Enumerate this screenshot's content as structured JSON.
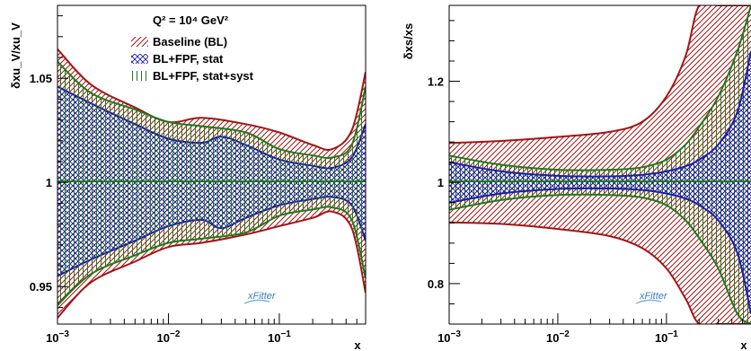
{
  "chart_data": [
    {
      "type": "area",
      "panel": "left",
      "ylabel": "δxu_V/xu_V",
      "xlabel": "x",
      "xscale": "log",
      "xlim": [
        0.001,
        0.6
      ],
      "ylim": [
        0.932,
        1.085
      ],
      "yticks": [
        0.95,
        1.0,
        1.05
      ],
      "ytick_labels": [
        "0.95",
        "1",
        "1.05"
      ],
      "xticks": [
        0.001,
        0.01,
        0.1
      ],
      "legend_title": "Q² = 10⁴ GeV²",
      "legend_placement": "top-center",
      "series": [
        {
          "name": "Baseline (BL)",
          "color": "#a31515",
          "hatch": "diagonal",
          "x": [
            0.001,
            0.002,
            0.005,
            0.01,
            0.02,
            0.05,
            0.1,
            0.2,
            0.3,
            0.45,
            0.6
          ],
          "upper": [
            1.064,
            1.047,
            1.036,
            1.029,
            1.031,
            1.028,
            1.024,
            1.018,
            1.016,
            1.025,
            1.053
          ],
          "lower": [
            0.935,
            0.952,
            0.962,
            0.969,
            0.971,
            0.975,
            0.979,
            0.983,
            0.986,
            0.978,
            0.947
          ]
        },
        {
          "name": "BL+FPF, stat",
          "color": "#1e1ea8",
          "hatch": "crossed",
          "x": [
            0.001,
            0.002,
            0.005,
            0.01,
            0.02,
            0.03,
            0.05,
            0.1,
            0.2,
            0.3,
            0.45,
            0.6
          ],
          "upper": [
            1.046,
            1.038,
            1.028,
            1.021,
            1.019,
            1.022,
            1.018,
            1.011,
            1.008,
            1.007,
            1.012,
            1.028
          ],
          "lower": [
            0.955,
            0.963,
            0.972,
            0.979,
            0.982,
            0.978,
            0.983,
            0.989,
            0.992,
            0.993,
            0.989,
            0.972
          ]
        },
        {
          "name": "BL+FPF, stat+syst",
          "color": "#1f7a1f",
          "hatch": "vertical",
          "x": [
            0.001,
            0.002,
            0.005,
            0.01,
            0.02,
            0.05,
            0.1,
            0.2,
            0.3,
            0.45,
            0.6
          ],
          "upper": [
            1.058,
            1.043,
            1.035,
            1.029,
            1.027,
            1.024,
            1.016,
            1.013,
            1.012,
            1.018,
            1.046
          ],
          "lower": [
            0.941,
            0.956,
            0.965,
            0.971,
            0.973,
            0.976,
            0.984,
            0.987,
            0.988,
            0.982,
            0.954
          ]
        }
      ]
    },
    {
      "type": "area",
      "panel": "right",
      "ylabel": "δxs/xs",
      "xlabel": "x",
      "xscale": "log",
      "xlim": [
        0.001,
        0.6
      ],
      "ylim": [
        0.72,
        1.35
      ],
      "yticks": [
        0.8,
        1.0,
        1.2
      ],
      "ytick_labels": [
        "0.8",
        "1",
        "1.2"
      ],
      "xticks": [
        0.001,
        0.01,
        0.1
      ],
      "series": [
        {
          "name": "Baseline (BL)",
          "color": "#a31515",
          "hatch": "diagonal",
          "x": [
            0.001,
            0.003,
            0.01,
            0.03,
            0.06,
            0.1,
            0.15,
            0.2,
            0.3,
            0.5,
            0.6
          ],
          "upper": [
            1.078,
            1.082,
            1.09,
            1.1,
            1.12,
            1.17,
            1.25,
            1.35,
            1.35,
            1.35,
            1.35
          ],
          "lower": [
            0.921,
            0.918,
            0.908,
            0.894,
            0.87,
            0.83,
            0.77,
            0.72,
            0.72,
            0.72,
            0.72
          ]
        },
        {
          "name": "BL+FPF, stat+syst",
          "color": "#1f7a1f",
          "hatch": "vertical",
          "x": [
            0.001,
            0.003,
            0.01,
            0.03,
            0.06,
            0.1,
            0.15,
            0.2,
            0.3,
            0.45,
            0.6
          ],
          "upper": [
            1.053,
            1.035,
            1.025,
            1.025,
            1.03,
            1.045,
            1.075,
            1.11,
            1.17,
            1.26,
            1.35
          ],
          "lower": [
            0.946,
            0.965,
            0.975,
            0.975,
            0.97,
            0.955,
            0.925,
            0.89,
            0.83,
            0.74,
            0.72
          ]
        },
        {
          "name": "BL+FPF, stat",
          "color": "#1e1ea8",
          "hatch": "crossed",
          "x": [
            0.001,
            0.003,
            0.01,
            0.03,
            0.06,
            0.1,
            0.15,
            0.2,
            0.3,
            0.45,
            0.6
          ],
          "upper": [
            1.04,
            1.022,
            1.013,
            1.012,
            1.015,
            1.022,
            1.032,
            1.045,
            1.075,
            1.14,
            1.26
          ],
          "lower": [
            0.96,
            0.978,
            0.987,
            0.988,
            0.985,
            0.978,
            0.968,
            0.955,
            0.925,
            0.86,
            0.74
          ]
        }
      ]
    }
  ],
  "logo": {
    "text": "xFitter"
  }
}
